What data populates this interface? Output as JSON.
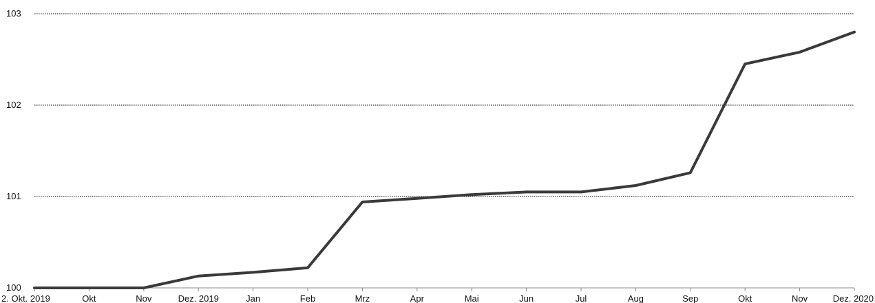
{
  "chart_data": {
    "type": "line",
    "title": "",
    "xlabel": "",
    "ylabel": "",
    "x": [
      "2. Okt. 2019",
      "Okt",
      "Nov",
      "Dez. 2019",
      "Jan",
      "Feb",
      "Mrz",
      "Apr",
      "Mai",
      "Jun",
      "Jul",
      "Aug",
      "Sep",
      "Okt",
      "Nov",
      "Dez. 2020"
    ],
    "series": [
      {
        "name": "",
        "color": "#3a3a3a",
        "values": [
          100.0,
          100.0,
          100.0,
          100.13,
          100.17,
          100.22,
          100.94,
          100.98,
          101.02,
          101.05,
          101.05,
          101.12,
          101.26,
          102.45,
          102.58,
          102.8
        ]
      }
    ],
    "ylim": [
      100,
      103
    ],
    "yticks": [
      "100",
      "101",
      "102",
      "103"
    ],
    "grid": true,
    "legend": "none"
  }
}
